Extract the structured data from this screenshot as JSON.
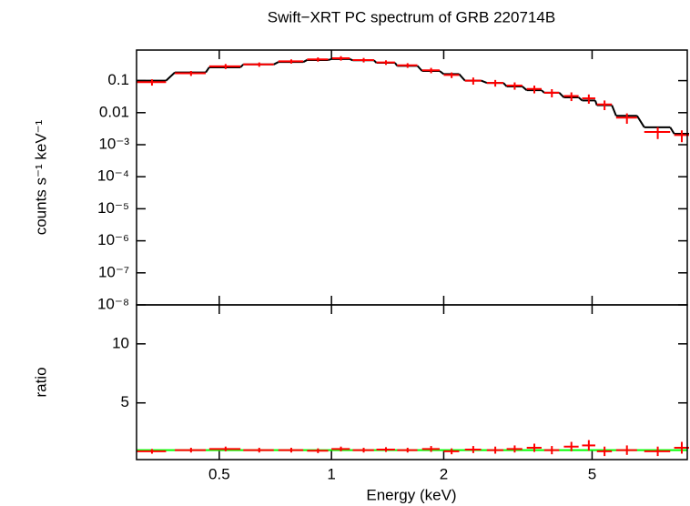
{
  "chart_data": [
    {
      "type": "errorbar",
      "title": "Swift−XRT PC spectrum of GRB 220714B",
      "y_label": "counts s⁻¹ keV⁻¹",
      "xlog": true,
      "ylog": true,
      "xlim": [
        0.3,
        9
      ],
      "ylim": [
        1e-08,
        0.9
      ],
      "yticks": [
        0.1,
        0.01,
        {
          "value": 0.001,
          "label": "10⁻³"
        },
        {
          "value": 0.0001,
          "label": "10⁻⁴"
        },
        {
          "value": 1e-05,
          "label": "10⁻⁵"
        },
        {
          "value": 1e-06,
          "label": "10⁻⁶"
        },
        {
          "value": 1e-07,
          "label": "10⁻⁷"
        },
        {
          "value": 1e-08,
          "label": "10⁻⁸"
        }
      ],
      "color": "#ff0000",
      "model_color": "#000000",
      "x": [
        0.33,
        0.42,
        0.52,
        0.64,
        0.78,
        0.92,
        1.06,
        1.22,
        1.4,
        1.6,
        1.85,
        2.1,
        2.4,
        2.75,
        3.1,
        3.5,
        3.9,
        4.4,
        4.9,
        5.4,
        6.2,
        7.5,
        8.7
      ],
      "xerr": [
        0.03,
        0.04,
        0.05,
        0.06,
        0.06,
        0.06,
        0.06,
        0.08,
        0.08,
        0.1,
        0.1,
        0.1,
        0.12,
        0.14,
        0.15,
        0.16,
        0.18,
        0.2,
        0.2,
        0.25,
        0.4,
        0.6,
        0.4
      ],
      "values": [
        0.09,
        0.17,
        0.28,
        0.32,
        0.4,
        0.46,
        0.5,
        0.44,
        0.37,
        0.3,
        0.21,
        0.15,
        0.1,
        0.085,
        0.07,
        0.055,
        0.042,
        0.033,
        0.028,
        0.018,
        0.007,
        0.0025,
        0.002
      ],
      "yerr": [
        0.02,
        0.03,
        0.05,
        0.05,
        0.06,
        0.07,
        0.08,
        0.07,
        0.06,
        0.05,
        0.04,
        0.03,
        0.025,
        0.02,
        0.018,
        0.015,
        0.012,
        0.01,
        0.009,
        0.006,
        0.0025,
        0.001,
        0.0008
      ],
      "model": [
        0.1,
        0.18,
        0.26,
        0.32,
        0.38,
        0.44,
        0.47,
        0.43,
        0.36,
        0.29,
        0.2,
        0.16,
        0.1,
        0.085,
        0.066,
        0.05,
        0.042,
        0.03,
        0.024,
        0.017,
        0.008,
        0.0035,
        0.0022
      ]
    },
    {
      "type": "errorbar",
      "y_label": "ratio",
      "x_label": "Energy (keV)",
      "xlog": true,
      "ylog": false,
      "xlim": [
        0.3,
        9
      ],
      "ylim": [
        0.2,
        13.3
      ],
      "xticks": [
        0.5,
        1,
        2,
        5
      ],
      "yticks": [
        5,
        10
      ],
      "color": "#ff0000",
      "ref_line": 1,
      "ref_color": "#00ff00",
      "x": [
        0.33,
        0.42,
        0.52,
        0.64,
        0.78,
        0.92,
        1.06,
        1.22,
        1.4,
        1.6,
        1.85,
        2.1,
        2.4,
        2.75,
        3.1,
        3.5,
        3.9,
        4.4,
        4.9,
        5.4,
        6.2,
        7.5,
        8.7
      ],
      "xerr": [
        0.03,
        0.04,
        0.05,
        0.06,
        0.06,
        0.06,
        0.06,
        0.08,
        0.08,
        0.1,
        0.1,
        0.1,
        0.12,
        0.14,
        0.15,
        0.16,
        0.18,
        0.2,
        0.2,
        0.25,
        0.4,
        0.6,
        0.4
      ],
      "values": [
        0.9,
        1.0,
        1.1,
        1.0,
        1.0,
        0.95,
        1.1,
        1.0,
        1.05,
        1.0,
        1.1,
        0.9,
        1.05,
        1.0,
        1.1,
        1.2,
        1.0,
        1.3,
        1.4,
        0.9,
        1.0,
        0.9,
        1.2
      ],
      "yerr": [
        0.2,
        0.2,
        0.2,
        0.2,
        0.2,
        0.2,
        0.2,
        0.2,
        0.2,
        0.2,
        0.25,
        0.25,
        0.3,
        0.3,
        0.3,
        0.35,
        0.35,
        0.4,
        0.45,
        0.4,
        0.4,
        0.4,
        0.5
      ]
    }
  ]
}
